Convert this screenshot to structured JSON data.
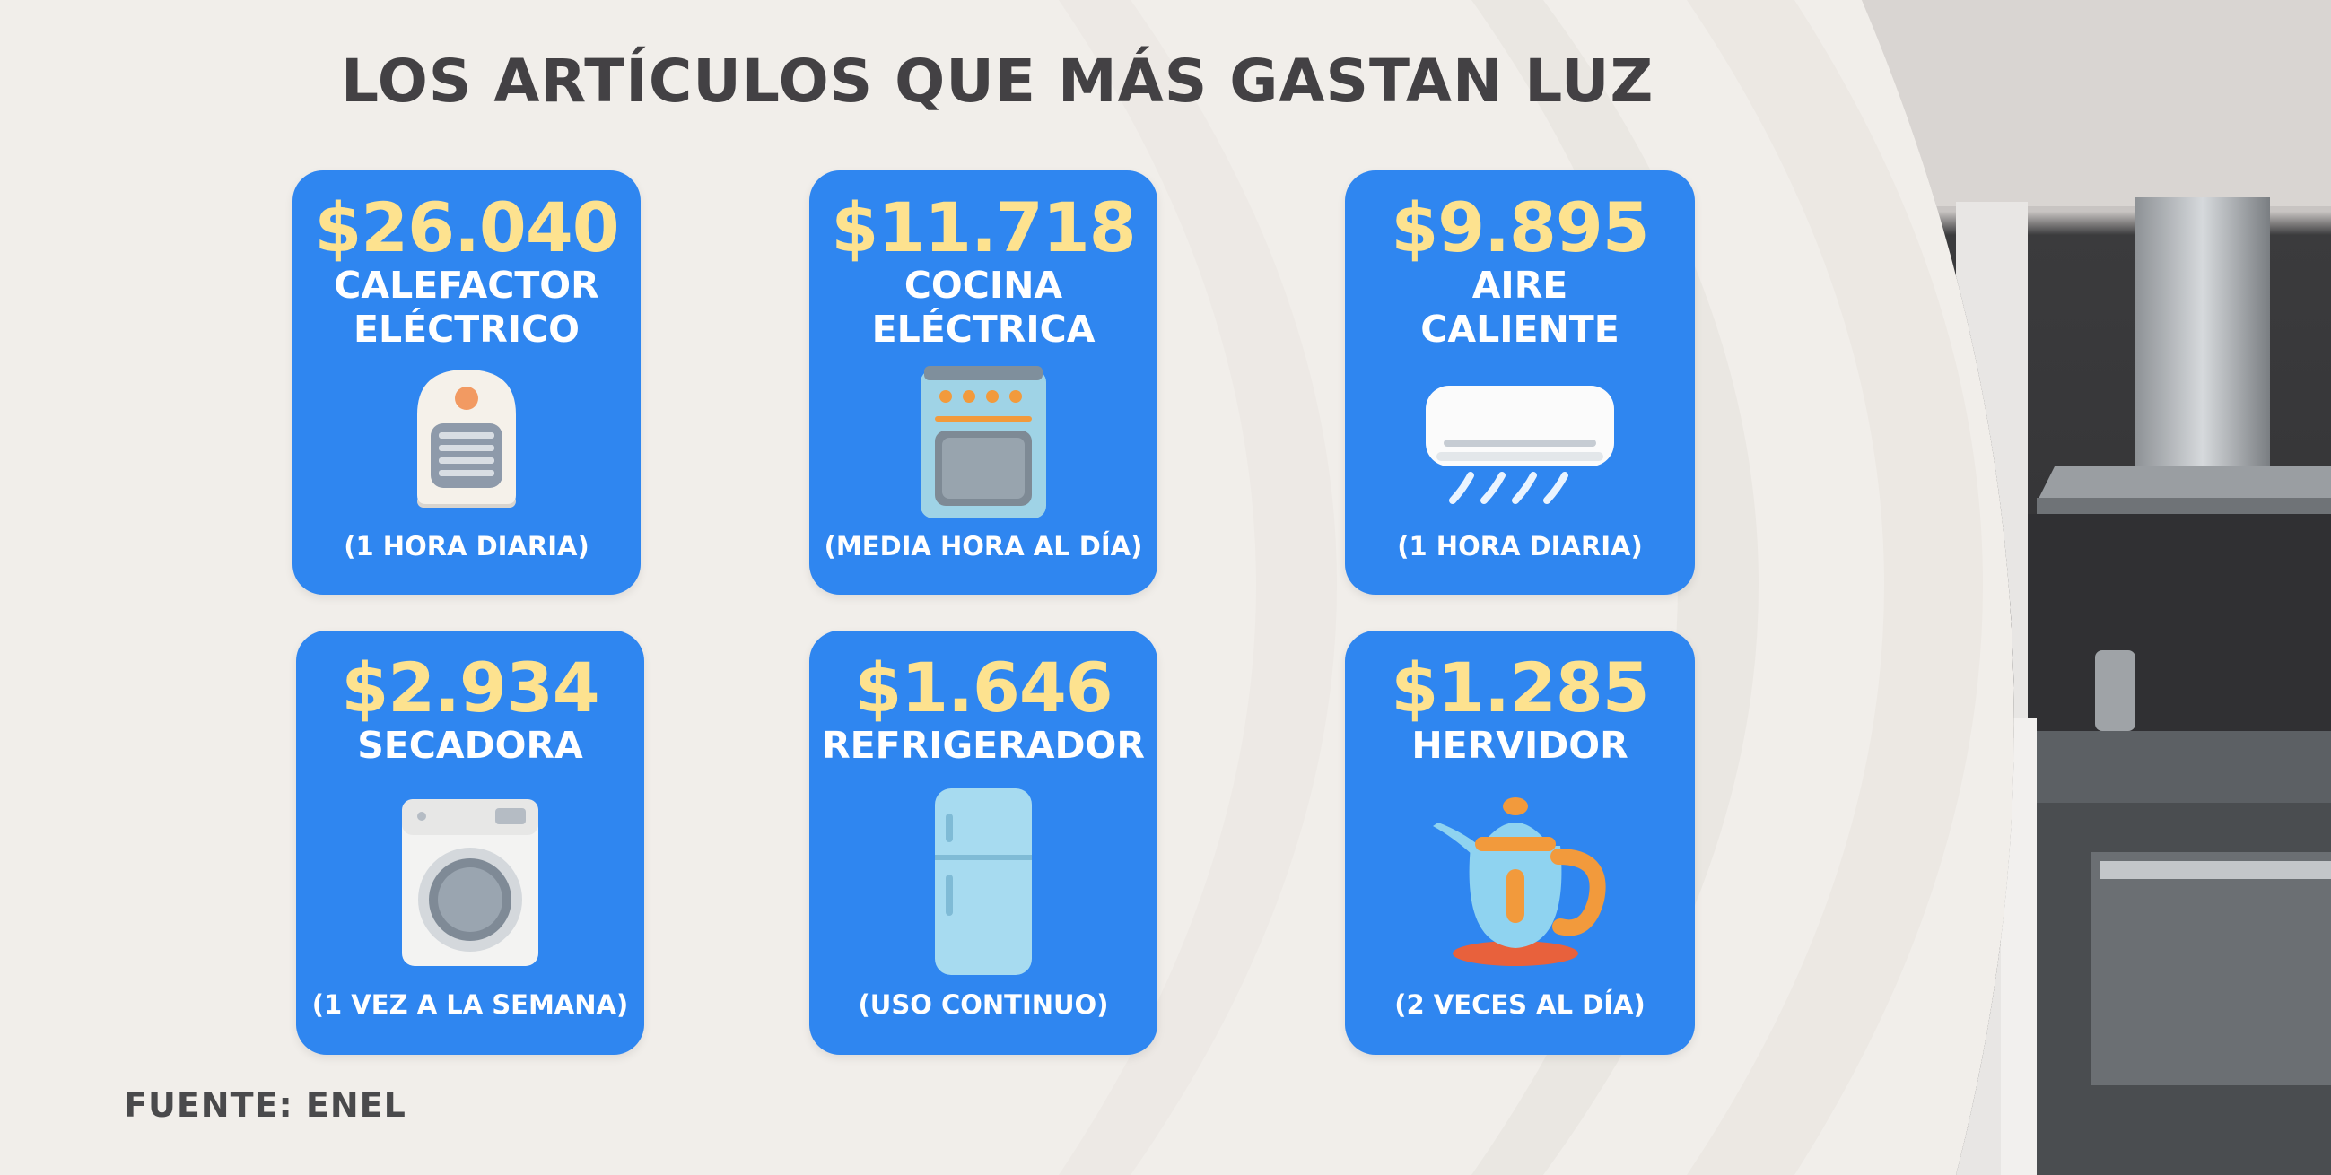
{
  "title": "LOS ARTÍCULOS QUE MÁS GASTAN LUZ",
  "source": "FUENTE: ENEL",
  "colors": {
    "card": "#2f86f0",
    "price": "#fde28f",
    "title": "#434144",
    "background": "#f1eeea"
  },
  "cards": [
    {
      "price": "$26.040",
      "name_line1": "CALEFACTOR",
      "name_line2": "ELÉCTRICO",
      "usage": "(1 HORA DIARIA)",
      "icon": "electric-heater-icon"
    },
    {
      "price": "$11.718",
      "name_line1": "COCINA",
      "name_line2": "ELÉCTRICA",
      "usage": "(MEDIA HORA AL DÍA)",
      "icon": "electric-stove-icon"
    },
    {
      "price": "$9.895",
      "name_line1": "AIRE",
      "name_line2": "CALIENTE",
      "usage": "(1 HORA DIARIA)",
      "icon": "air-conditioner-icon"
    },
    {
      "price": "$2.934",
      "name_line1": "SECADORA",
      "name_line2": "",
      "usage": "(1 VEZ A LA SEMANA)",
      "icon": "washing-machine-icon"
    },
    {
      "price": "$1.646",
      "name_line1": "REFRIGERADOR",
      "name_line2": "",
      "usage": "(USO CONTINUO)",
      "icon": "refrigerator-icon"
    },
    {
      "price": "$1.285",
      "name_line1": "HERVIDOR",
      "name_line2": "",
      "usage": "(2 VECES AL DÍA)",
      "icon": "kettle-icon"
    }
  ]
}
